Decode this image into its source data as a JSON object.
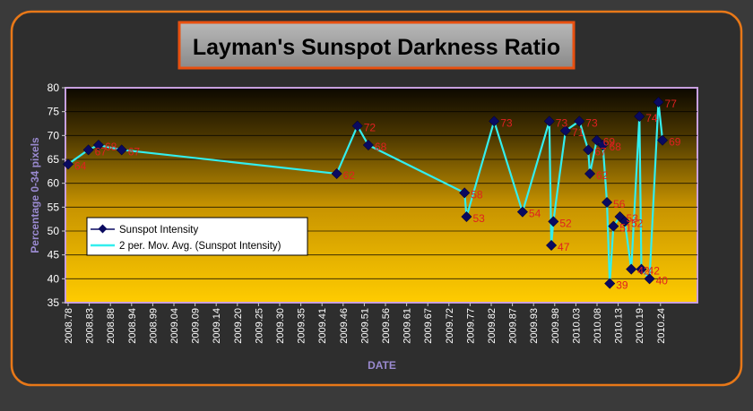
{
  "chart_data": {
    "type": "line",
    "title": "Layman's Sunspot Darkness Ratio",
    "xlabel": "DATE",
    "ylabel": "Percentage 0-34  pixels",
    "ylim": [
      35,
      80
    ],
    "yticks": [
      35,
      40,
      45,
      50,
      55,
      60,
      65,
      70,
      75,
      80
    ],
    "xlim": [
      2008.78,
      2010.275
    ],
    "xticks": [
      "2008.78",
      "2008.83",
      "2008.88",
      "2008.94",
      "2008.99",
      "2009.04",
      "2009.09",
      "2009.14",
      "2009.20",
      "2009.25",
      "2009.30",
      "2009.35",
      "2009.41",
      "2009.46",
      "2009.51",
      "2009.56",
      "2009.61",
      "2009.67",
      "2009.72",
      "2009.77",
      "2009.82",
      "2009.87",
      "2009.93",
      "2009.98",
      "2010.03",
      "2010.08",
      "2010.13",
      "2010.19",
      "2010.24"
    ],
    "grid": true,
    "legend_position": "center-left",
    "colors": {
      "intensity": "#0a0a60",
      "moving_avg": "#33eeee",
      "labels": "#e02020",
      "axis_text": "#ffffff",
      "axis_title": "#9a8ad0",
      "frame": "#e87818"
    },
    "series": [
      {
        "name": "Sunspot Intensity",
        "x": [
          2008.78,
          2008.83,
          2008.855,
          2008.912,
          2009.442,
          2009.493,
          2009.52,
          2009.757,
          2009.762,
          2009.83,
          2009.9,
          2009.966,
          2009.971,
          2009.976,
          2010.006,
          2010.04,
          2010.062,
          2010.066,
          2010.083,
          2010.098,
          2010.108,
          2010.115,
          2010.124,
          2010.14,
          2010.152,
          2010.168,
          2010.188,
          2010.193,
          2010.213,
          2010.235,
          2010.245
        ],
        "y": [
          64,
          67,
          68,
          67,
          62,
          72,
          68,
          58,
          53,
          73,
          54,
          73,
          47,
          52,
          71,
          73,
          67,
          62,
          69,
          68,
          56,
          39,
          51,
          53,
          52,
          42,
          74,
          42,
          40,
          77,
          69
        ],
        "labels": [
          "64",
          "67",
          "68",
          "67",
          "62",
          "72",
          "68",
          "58",
          "53",
          "73",
          "54",
          "73",
          "47",
          "52",
          "71",
          "73",
          "67",
          "62",
          "69",
          "68",
          "56",
          "39",
          "51",
          "53",
          "52",
          "42",
          "74",
          "42",
          "40",
          "77",
          "69"
        ]
      },
      {
        "name": "2 per. Mov. Avg. (Sunspot Intensity)",
        "x": [
          2008.78,
          2008.83,
          2008.855,
          2008.912,
          2009.442,
          2009.493,
          2009.52,
          2009.757,
          2009.762,
          2009.83,
          2009.9,
          2009.966,
          2009.971,
          2009.976,
          2010.006,
          2010.04,
          2010.062,
          2010.066,
          2010.083,
          2010.098,
          2010.108,
          2010.115,
          2010.124,
          2010.14,
          2010.152,
          2010.168,
          2010.188,
          2010.193,
          2010.213,
          2010.235,
          2010.245
        ],
        "y": [
          64,
          67,
          68,
          67,
          62,
          72,
          68,
          58,
          53,
          73,
          54,
          73,
          47,
          52,
          71,
          73,
          67,
          62,
          69,
          68,
          56,
          39,
          51,
          53,
          52,
          42,
          74,
          42,
          40,
          77,
          69
        ]
      }
    ]
  }
}
